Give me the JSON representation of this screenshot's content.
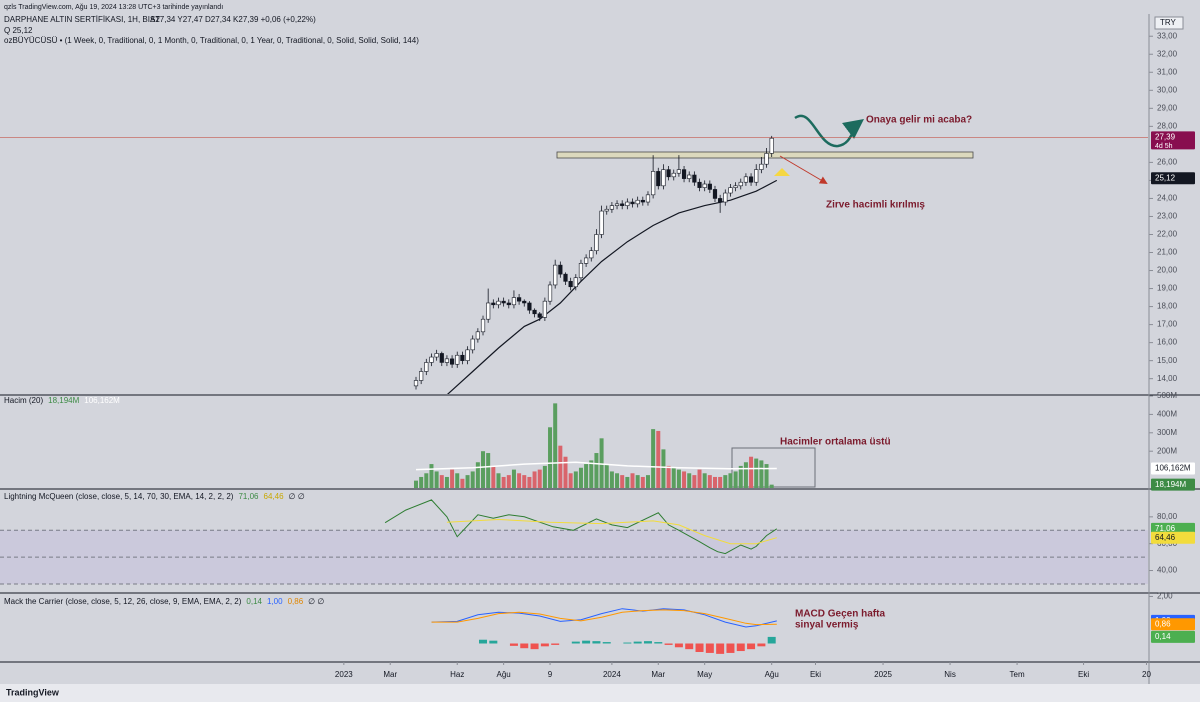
{
  "page": {
    "caption": "qzls TradingView.com, Ağu 19, 2024 13:28 UTC+3 tarihinde yayınlandı",
    "currency": "TRY",
    "brand": "TradingView"
  },
  "chart_data": [
    {
      "type": "candlestick",
      "title": "DARPHANE ALTIN SERTİFİKASI, 1H, BIST",
      "ohlc_text": "A27,34 Y27,47 D27,34 K27,39 +0,06 (+0,22%)",
      "quote_text": "Q 25,12",
      "indicator_text": "ozBÜYÜCÜSÜ • (1 Week, 0, Traditional, 0, 1 Month, 0, Traditional, 0, 1 Year, 0, Traditional, 0, Solid, Solid, Solid, 144)",
      "x": [
        14,
        15,
        16,
        17,
        18,
        19,
        20,
        21,
        22,
        23,
        24,
        25,
        26,
        27,
        28,
        29,
        30,
        31,
        32,
        33,
        34,
        35,
        36,
        37,
        38,
        39,
        40,
        41,
        42,
        43,
        44,
        45,
        46,
        47,
        48,
        49,
        50,
        51,
        52,
        53,
        54,
        55,
        56,
        57,
        58,
        59,
        60,
        61,
        62,
        63,
        64,
        65,
        66,
        67,
        68,
        69,
        70,
        71,
        72,
        73,
        74,
        75,
        76,
        77,
        78,
        79,
        80,
        81,
        82,
        83
      ],
      "open": [
        13.6,
        13.9,
        14.4,
        14.9,
        15.2,
        15.4,
        14.9,
        15.1,
        14.8,
        15.3,
        15.0,
        15.6,
        16.2,
        16.6,
        17.3,
        18.2,
        18.1,
        18.3,
        18.2,
        18.1,
        18.5,
        18.3,
        18.2,
        17.8,
        17.6,
        17.4,
        18.3,
        19.2,
        20.3,
        19.8,
        19.4,
        19.1,
        19.6,
        20.4,
        20.7,
        21.1,
        22.0,
        23.3,
        23.4,
        23.6,
        23.7,
        23.6,
        23.8,
        23.7,
        23.9,
        23.8,
        24.2,
        25.5,
        24.7,
        25.6,
        25.2,
        25.4,
        25.6,
        25.1,
        25.3,
        24.9,
        24.6,
        24.8,
        24.5,
        24.0,
        23.8,
        24.3,
        24.6,
        24.7,
        24.9,
        25.2,
        24.9,
        25.6,
        25.9,
        26.5
      ],
      "high": [
        14.1,
        14.6,
        15.1,
        15.4,
        15.6,
        15.5,
        15.3,
        15.3,
        15.5,
        15.5,
        15.8,
        16.4,
        16.8,
        17.5,
        19.0,
        18.4,
        18.5,
        18.5,
        18.4,
        18.9,
        18.7,
        18.4,
        18.3,
        17.9,
        17.7,
        18.5,
        19.4,
        20.6,
        20.5,
        19.9,
        19.6,
        19.8,
        20.6,
        20.9,
        21.3,
        22.3,
        23.6,
        23.6,
        23.8,
        23.9,
        23.9,
        24.0,
        24.0,
        24.1,
        24.1,
        24.4,
        26.4,
        25.7,
        25.9,
        25.8,
        25.6,
        26.4,
        25.8,
        25.5,
        25.5,
        25.1,
        25.0,
        25.0,
        24.7,
        24.2,
        24.5,
        24.8,
        24.9,
        25.1,
        25.4,
        25.4,
        25.9,
        26.3,
        26.8,
        27.47
      ],
      "low": [
        13.4,
        13.7,
        14.2,
        14.7,
        15.0,
        14.7,
        14.7,
        14.6,
        14.6,
        14.8,
        14.8,
        15.4,
        16.0,
        16.4,
        17.1,
        17.9,
        17.9,
        18.0,
        17.9,
        17.9,
        18.1,
        18.0,
        17.6,
        17.4,
        17.2,
        17.2,
        18.1,
        19.0,
        19.6,
        19.2,
        18.9,
        18.9,
        19.4,
        20.2,
        20.5,
        20.9,
        21.8,
        23.1,
        23.2,
        23.4,
        23.4,
        23.4,
        23.5,
        23.5,
        23.6,
        23.6,
        24.0,
        24.5,
        24.5,
        25.0,
        25.0,
        25.2,
        24.9,
        24.9,
        24.7,
        24.4,
        24.4,
        24.3,
        23.8,
        23.2,
        23.6,
        24.1,
        24.4,
        24.5,
        24.7,
        24.7,
        24.7,
        25.4,
        25.7,
        26.3
      ],
      "close": [
        13.9,
        14.4,
        14.9,
        15.2,
        15.4,
        14.9,
        15.1,
        14.8,
        15.3,
        15.0,
        15.6,
        16.2,
        16.6,
        17.3,
        18.2,
        18.1,
        18.3,
        18.2,
        18.1,
        18.5,
        18.3,
        18.2,
        17.8,
        17.6,
        17.4,
        18.3,
        19.2,
        20.3,
        19.8,
        19.4,
        19.1,
        19.6,
        20.4,
        20.7,
        21.1,
        22.0,
        23.3,
        23.4,
        23.6,
        23.7,
        23.6,
        23.8,
        23.7,
        23.9,
        23.8,
        24.2,
        25.5,
        24.7,
        25.6,
        25.2,
        25.4,
        25.6,
        25.1,
        25.3,
        24.9,
        24.6,
        24.8,
        24.5,
        24.0,
        23.8,
        24.3,
        24.6,
        24.7,
        24.9,
        25.2,
        24.9,
        25.6,
        25.9,
        26.5,
        27.34
      ],
      "up_color": "#ffffff",
      "down_color": "#131722",
      "ylim": [
        13.15,
        33.9
      ],
      "yticks": [
        {
          "value": 14,
          "label": "14,00"
        },
        {
          "value": 15,
          "label": "15,00"
        },
        {
          "value": 16,
          "label": "16,00"
        },
        {
          "value": 17,
          "label": "17,00"
        },
        {
          "value": 18,
          "label": "18,00"
        },
        {
          "value": 19,
          "label": "19,00"
        },
        {
          "value": 20,
          "label": "20,00"
        },
        {
          "value": 21,
          "label": "21,00"
        },
        {
          "value": 22,
          "label": "22,00"
        },
        {
          "value": 23,
          "label": "23,00"
        },
        {
          "value": 24,
          "label": "24,00"
        },
        {
          "value": 25,
          "label": "25,00"
        },
        {
          "value": 26,
          "label": "26,00"
        },
        {
          "value": 28,
          "label": "28,00"
        },
        {
          "value": 29,
          "label": "29,00"
        },
        {
          "value": 30,
          "label": "30,00"
        },
        {
          "value": 31,
          "label": "31,00"
        },
        {
          "value": 32,
          "label": "32,00"
        },
        {
          "value": 33,
          "label": "33,00"
        }
      ],
      "xlim": [
        -66.7,
        156
      ],
      "xticks": [
        {
          "value": 0,
          "label": "2023"
        },
        {
          "value": 9,
          "label": "Mar"
        },
        {
          "value": 22,
          "label": "Haz"
        },
        {
          "value": 31,
          "label": "Ağu"
        },
        {
          "value": 40,
          "label": "9"
        },
        {
          "value": 52,
          "label": "2024"
        },
        {
          "value": 61,
          "label": "Mar"
        },
        {
          "value": 70,
          "label": "May"
        },
        {
          "value": 83,
          "label": "Ağu"
        },
        {
          "value": 91.5,
          "label": "Eki"
        },
        {
          "value": 104.6,
          "label": "2025"
        },
        {
          "value": 117.6,
          "label": "Nis"
        },
        {
          "value": 130.6,
          "label": "Tem"
        },
        {
          "value": 143.5,
          "label": "Eki"
        },
        {
          "value": 155.7,
          "label": "20"
        }
      ],
      "lines": [
        {
          "color": "#131722",
          "x": [
            20,
            25,
            30,
            35,
            38,
            42,
            46,
            50,
            55,
            60,
            65,
            70,
            75,
            80,
            84
          ],
          "values": [
            13.1,
            14.4,
            15.7,
            16.9,
            17.3,
            18.2,
            19.4,
            20.5,
            21.6,
            22.5,
            23.2,
            23.6,
            23.9,
            24.4,
            25.0
          ]
        }
      ],
      "price_labels": [
        {
          "value": 27.39,
          "label": "27,39",
          "color": "#880e4f"
        },
        {
          "value": 25.12,
          "label": "25,12",
          "color": "#131722"
        }
      ],
      "countdown": "4d 5h",
      "annotations": [
        "Onaya gelir mi acaba?",
        "Zirve hacimli kırılmış"
      ]
    },
    {
      "type": "bar",
      "title": "Hacim (20)",
      "values": [
        40,
        60,
        80,
        130,
        90,
        70,
        60,
        100,
        80,
        50,
        70,
        90,
        140,
        200,
        190,
        120,
        80,
        60,
        70,
        100,
        80,
        70,
        60,
        90,
        100,
        120,
        330,
        460,
        230,
        170,
        80,
        90,
        110,
        130,
        150,
        190,
        270,
        130,
        90,
        80,
        70,
        60,
        80,
        70,
        60,
        70,
        320,
        310,
        210,
        120,
        110,
        100,
        90,
        80,
        70,
        100,
        80,
        70,
        60,
        60,
        70,
        80,
        90,
        120,
        140,
        170,
        160,
        150,
        130,
        18.194
      ],
      "up_color": "#5a9e5f",
      "down_color": "#d9646b",
      "ylim": [
        0,
        500
      ],
      "yticks": [
        {
          "value": 200,
          "label": "200M"
        },
        {
          "value": 300,
          "label": "300M"
        },
        {
          "value": 400,
          "label": "400M"
        },
        {
          "value": 500,
          "label": "500M"
        }
      ],
      "lines": [
        {
          "color": "#ffffff",
          "x": [
            14,
            25,
            35,
            45,
            55,
            65,
            75,
            84
          ],
          "values": [
            100,
            110,
            130,
            140,
            120,
            110,
            105,
            106.162
          ]
        }
      ],
      "last_labels": [
        {
          "value": 106.162,
          "label": "106,162M",
          "color": "#ffffff",
          "text_color": "#131722"
        },
        {
          "value": 18.194,
          "label": "18,194M",
          "color": "#3d8b45",
          "text_color": "#ffffff"
        }
      ],
      "annotation": "Hacimler ortalama üstü"
    },
    {
      "type": "line",
      "title": "Lightning McQueen (close, close, 5, 14, 70, 30, EMA, 14, 2, 2, 2)",
      "suffix": "∅ ∅",
      "series": [
        {
          "color": "#2e7d32",
          "x": [
            8,
            12,
            17,
            20,
            22,
            26,
            29,
            32,
            35,
            38,
            40.6,
            44.5,
            49,
            52,
            55,
            61,
            63,
            65,
            69,
            71,
            72.5,
            74,
            77,
            79,
            80,
            82,
            84
          ],
          "values": [
            75.6,
            85,
            92.6,
            80,
            65.2,
            81.5,
            79,
            81.5,
            80,
            76,
            72.6,
            70,
            78.5,
            74,
            72,
            83,
            74,
            70,
            61.5,
            57,
            54,
            52.6,
            59,
            56,
            58,
            66,
            71.06
          ]
        },
        {
          "color": "#f2dc3c",
          "x": [
            20,
            30,
            40,
            50,
            60,
            65,
            70,
            75,
            80,
            84
          ],
          "values": [
            76,
            78,
            76,
            75,
            77,
            74,
            66,
            60,
            60,
            64.46
          ]
        }
      ],
      "ylim": [
        24,
        100
      ],
      "yticks": [
        {
          "value": 40,
          "label": "40,00"
        },
        {
          "value": 60,
          "label": "60,00"
        },
        {
          "value": 80,
          "label": "80,00"
        }
      ],
      "band": [
        30,
        70
      ],
      "midline": 50,
      "last_labels": [
        {
          "value": 71.06,
          "label": "71,06",
          "color": "#4caf50",
          "text_color": "#ffffff"
        },
        {
          "value": 64.46,
          "label": "64,46",
          "color": "#f2dc3c",
          "text_color": "#131722"
        }
      ]
    },
    {
      "type": "macd",
      "title": "Mack the Carrier (close, close, 5, 12, 26, close, 9, EMA, EMA, 2, 2)",
      "suffix": "∅ ∅",
      "series": [
        {
          "color": "#2962ff",
          "x": [
            17,
            22,
            26,
            30,
            34,
            38,
            42,
            46,
            50,
            54,
            58,
            62,
            66,
            70,
            74,
            78,
            80,
            84
          ],
          "values": [
            0.95,
            0.98,
            1.25,
            1.35,
            1.32,
            1.2,
            0.98,
            1.05,
            1.3,
            1.5,
            1.4,
            1.5,
            1.45,
            1.25,
            0.95,
            0.75,
            0.8,
            1.0
          ]
        },
        {
          "color": "#ff9800",
          "x": [
            17,
            22,
            26,
            30,
            34,
            38,
            42,
            46,
            50,
            54,
            58,
            62,
            66,
            70,
            74,
            78,
            80,
            84
          ],
          "values": [
            0.95,
            0.95,
            1.1,
            1.3,
            1.35,
            1.28,
            1.1,
            1.0,
            1.15,
            1.35,
            1.42,
            1.45,
            1.42,
            1.3,
            1.1,
            0.9,
            0.85,
            0.86
          ]
        },
        {
          "type": "histogram",
          "axis": "y2",
          "color": "#26a69a",
          "neg_color": "#ef5350",
          "x": [
            27,
            29,
            33,
            35,
            37,
            39,
            41,
            45,
            47,
            49,
            51,
            55,
            57,
            59,
            61,
            63,
            65,
            67,
            69,
            71,
            73,
            75,
            77,
            79,
            81,
            83
          ],
          "values": [
            0.08,
            0.06,
            -0.05,
            -0.1,
            -0.12,
            -0.06,
            -0.03,
            0.04,
            0.06,
            0.05,
            0.03,
            0.02,
            0.04,
            0.05,
            0.03,
            -0.03,
            -0.08,
            -0.12,
            -0.18,
            -0.2,
            -0.22,
            -0.2,
            -0.16,
            -0.12,
            -0.06,
            0.14
          ]
        }
      ],
      "ylim": [
        -0.6,
        2.1
      ],
      "yticks": [
        {
          "value": 2,
          "label": "2,00"
        }
      ],
      "y2lim": [
        -0.35,
        1.05
      ],
      "last_labels": [
        {
          "value": 0.14,
          "label": "0,14",
          "color": "#4caf50",
          "text_color": "#ffffff",
          "axis": "y2"
        },
        {
          "value": 1.0,
          "label": "1,00",
          "color": "#2962ff",
          "text_color": "#ffffff"
        },
        {
          "value": 0.86,
          "label": "0,86",
          "color": "#ff9800",
          "text_color": "#ffffff"
        }
      ],
      "annotation": [
        "MACD Geçen hafta",
        "sinyal vermiş"
      ]
    }
  ]
}
